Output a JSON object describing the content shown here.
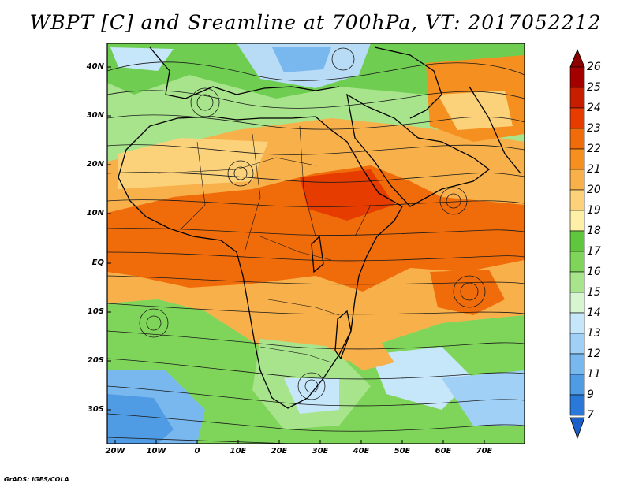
{
  "title": "WBPT [C] and Sreamline at 700hPa, VT: 2017052212",
  "credit": "GrADS: IGES/COLA",
  "map": {
    "lat_labels": [
      "40N",
      "30N",
      "20N",
      "10N",
      "EQ",
      "10S",
      "20S",
      "30S"
    ],
    "lon_labels": [
      "20W",
      "10W",
      "0",
      "10E",
      "20E",
      "30E",
      "40E",
      "50E",
      "60E",
      "70E"
    ],
    "lat_range": [
      -35,
      45
    ],
    "lon_range": [
      -22,
      80
    ]
  },
  "colorbar": {
    "labels": [
      "26",
      "25",
      "24",
      "23",
      "22",
      "21",
      "20",
      "19",
      "18",
      "17",
      "16",
      "15",
      "14",
      "13",
      "12",
      "11",
      "9",
      "7"
    ],
    "colors": [
      "#a50000",
      "#c81e00",
      "#e63c00",
      "#f06c0a",
      "#f59020",
      "#f8b04a",
      "#fbd27a",
      "#fff0a8",
      "#5fc63e",
      "#7fd55a",
      "#a8e48c",
      "#d6f5d0",
      "#c6e6fa",
      "#a0d0f5",
      "#78b8ee",
      "#4f9be4",
      "#2a78d8"
    ],
    "top_color": "#8c0000",
    "bottom_color": "#1d5fc8"
  },
  "field": {
    "units": "C",
    "level": "700hPa",
    "valid_time": "2017052212"
  }
}
